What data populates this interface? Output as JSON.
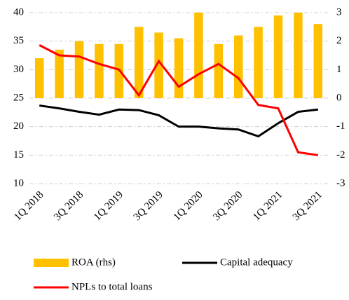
{
  "chart_data": {
    "type": "bar-line",
    "categories": [
      "1Q 2018",
      null,
      "3Q 2018",
      null,
      "1Q 2019",
      null,
      "3Q 2019",
      null,
      "1Q 2020",
      null,
      "3Q 2020",
      null,
      "1Q 2021",
      null,
      "3Q 2021"
    ],
    "series": [
      {
        "name": "ROA (rhs)",
        "type": "bar",
        "axis": "y2",
        "color": "#ffc000",
        "values": [
          1.4,
          1.7,
          2.0,
          1.9,
          1.9,
          2.5,
          2.3,
          2.1,
          3.0,
          1.9,
          2.2,
          2.5,
          2.9,
          3.0,
          2.6
        ]
      },
      {
        "name": "Capital adequacy",
        "type": "line",
        "color": "#000000",
        "values": [
          23.7,
          23.2,
          22.6,
          22.1,
          23.0,
          22.9,
          22.0,
          20.0,
          20.0,
          19.7,
          19.5,
          18.3,
          20.6,
          22.6,
          23.0
        ]
      },
      {
        "name": "NPLs to total loans",
        "type": "line",
        "color": "#ff0000",
        "values": [
          34.3,
          32.5,
          32.3,
          31.0,
          30.0,
          25.5,
          31.5,
          27.0,
          29.2,
          31.0,
          28.5,
          23.8,
          23.2,
          15.5,
          15.0
        ]
      }
    ],
    "ylim": [
      10,
      40
    ],
    "yticks": [
      10,
      15,
      20,
      25,
      30,
      35,
      40
    ],
    "y2lim": [
      -3,
      3
    ],
    "y2ticks": [
      -3,
      -2,
      -1,
      0,
      1,
      2,
      3
    ],
    "grid": true,
    "legend": "bottom"
  }
}
